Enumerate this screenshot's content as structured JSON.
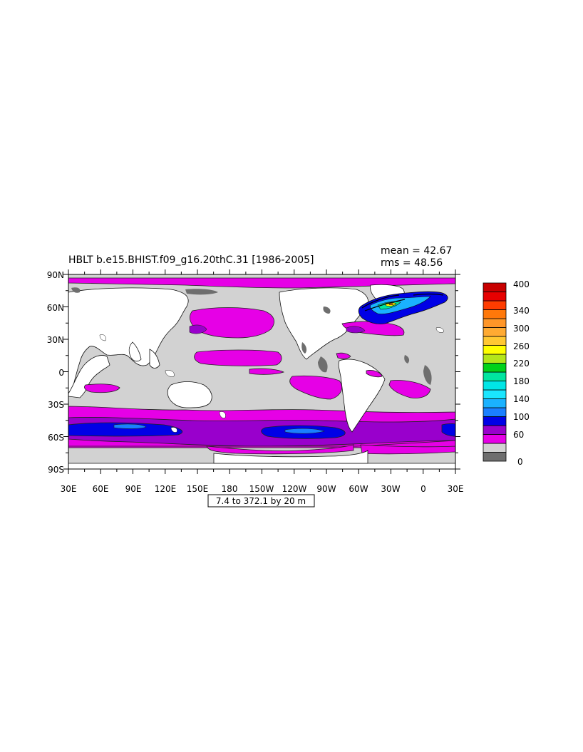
{
  "header": {
    "title": "HBLT b.e15.BHIST.f09_g16.20thC.31 [1986-2005]",
    "stat_mean": "mean = 42.67",
    "stat_rms": "rms = 48.56"
  },
  "axes": {
    "lat_labels": [
      "90N",
      "60N",
      "30N",
      "0",
      "30S",
      "60S",
      "90S"
    ],
    "lon_labels": [
      "30E",
      "60E",
      "90E",
      "120E",
      "150E",
      "180",
      "150W",
      "120W",
      "90W",
      "60W",
      "30W",
      "0",
      "30E"
    ]
  },
  "range_box": "7.4 to 372.1 by 20 m",
  "colorbar": {
    "colors": [
      "#6e6e6e",
      "#d2d2d2",
      "#e600e6",
      "#9900cc",
      "#0000e6",
      "#1a80ff",
      "#1ab2ff",
      "#1ae6ff",
      "#00e6e6",
      "#00e6a0",
      "#00d21a",
      "#b4e61a",
      "#ffff00",
      "#ffc832",
      "#ffaa32",
      "#ff9628",
      "#ff780a",
      "#ff3c00",
      "#e60000",
      "#c80000"
    ],
    "labels": [
      "400",
      "340",
      "300",
      "260",
      "220",
      "180",
      "140",
      "100",
      "60",
      "0"
    ]
  },
  "colors": {
    "land": "#ffffff",
    "low_dark": "#6e6e6e",
    "ocean_gray": "#d2d2d2",
    "magenta": "#e600e6",
    "purple": "#9900cc",
    "blue": "#0000e6",
    "lightblue": "#1a80ff"
  }
}
